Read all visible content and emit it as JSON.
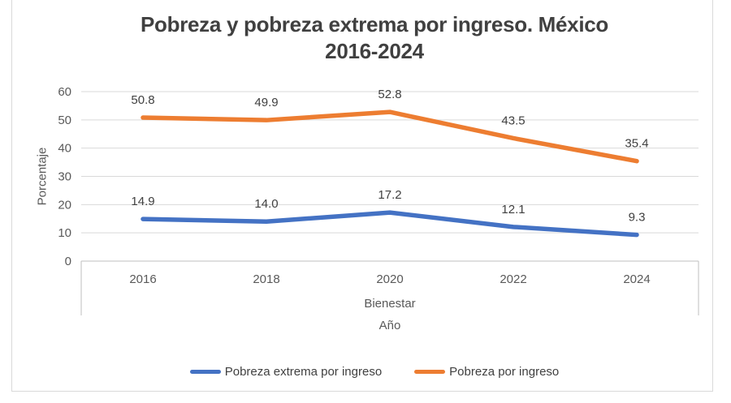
{
  "title": {
    "line1": "Pobreza y pobreza extrema por ingreso. México",
    "line2": "2016-2024"
  },
  "chart_data": {
    "type": "line",
    "title": "Pobreza y pobreza extrema por ingreso. México 2016-2024",
    "categories": [
      "2016",
      "2018",
      "2020",
      "2022",
      "2024"
    ],
    "series": [
      {
        "name": "Pobreza extrema por ingreso",
        "color": "#4472C4",
        "values": [
          14.9,
          14.0,
          17.2,
          12.1,
          9.3
        ]
      },
      {
        "name": "Pobreza por ingreso",
        "color": "#ED7D31",
        "values": [
          50.8,
          49.9,
          52.8,
          43.5,
          35.4
        ]
      }
    ],
    "xlabel": "Año",
    "x_group_label": "Bienestar",
    "ylabel": "Porcentaje",
    "ylim": [
      0,
      60
    ],
    "yticks": [
      0,
      10,
      20,
      30,
      40,
      50,
      60
    ],
    "grid": true,
    "data_labels": true,
    "legend_position": "bottom"
  },
  "colors": {
    "title_text": "#404040",
    "axis_text": "#595959",
    "data_label_text": "#404040",
    "gridline": "#D9D9D9",
    "axis_line": "#BFBFBF",
    "chart_border": "#D9D9D9",
    "background": "#FFFFFF"
  }
}
